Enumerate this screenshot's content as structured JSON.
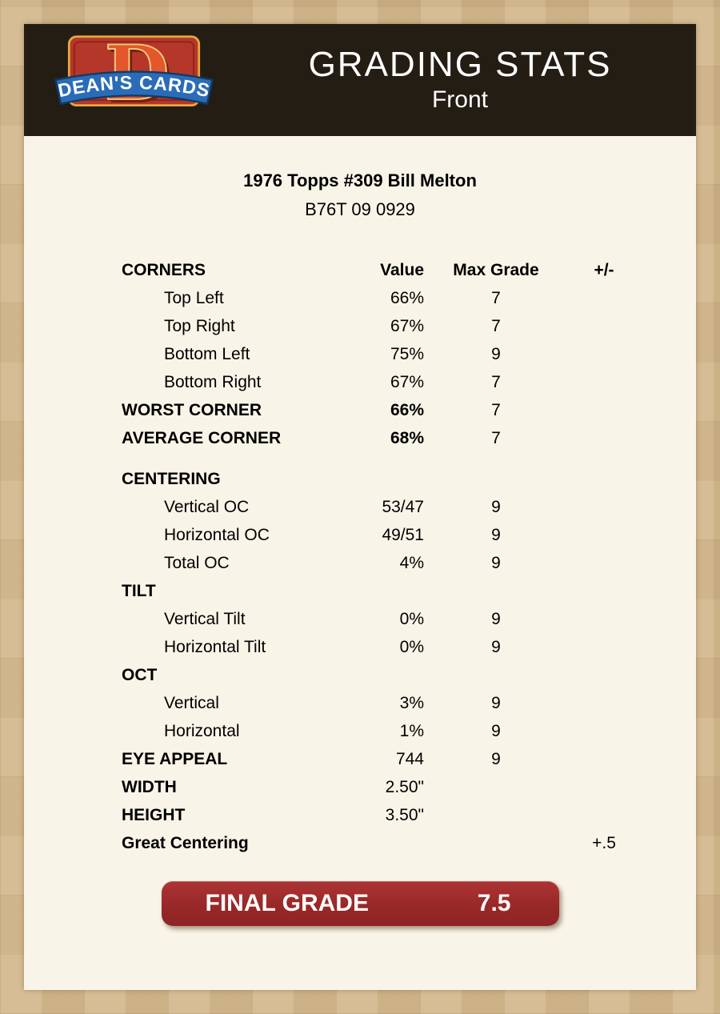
{
  "header": {
    "title": "GRADING STATS",
    "subtitle": "Front",
    "logo": {
      "letter": "D",
      "banner_text": "DEAN'S CARDS"
    }
  },
  "card_info": {
    "title": "1976 Topps #309 Bill Melton",
    "code": "B76T 09 0929"
  },
  "grading_table": {
    "rows": [
      {
        "style": "header",
        "label": "CORNERS",
        "value": "Value",
        "max": "Max Grade",
        "pm": "+/-"
      },
      {
        "style": "item",
        "label": "Top Left",
        "value": "66%",
        "max": "7"
      },
      {
        "style": "item",
        "label": "Top Right",
        "value": "67%",
        "max": "7"
      },
      {
        "style": "item",
        "label": "Bottom Left",
        "value": "75%",
        "max": "9"
      },
      {
        "style": "item",
        "label": "Bottom Right",
        "value": "67%",
        "max": "7"
      },
      {
        "style": "summary",
        "label": "WORST CORNER",
        "value": "66%",
        "max": "7"
      },
      {
        "style": "summary",
        "label": "AVERAGE CORNER",
        "value": "68%",
        "max": "7"
      },
      {
        "style": "section",
        "label": "CENTERING",
        "gap_before": true
      },
      {
        "style": "item",
        "label": "Vertical OC",
        "value": "53/47",
        "max": "9"
      },
      {
        "style": "item",
        "label": "Horizontal OC",
        "value": "49/51",
        "max": "9"
      },
      {
        "style": "item",
        "label": "Total OC",
        "value": "4%",
        "max": "9"
      },
      {
        "style": "section",
        "label": "TILT"
      },
      {
        "style": "item",
        "label": "Vertical Tilt",
        "value": "0%",
        "max": "9"
      },
      {
        "style": "item",
        "label": "Horizontal Tilt",
        "value": "0%",
        "max": "9"
      },
      {
        "style": "section",
        "label": "OCT"
      },
      {
        "style": "item",
        "label": "Vertical",
        "value": "3%",
        "max": "9"
      },
      {
        "style": "item",
        "label": "Horizontal",
        "value": "1%",
        "max": "9"
      },
      {
        "style": "metric",
        "label": "EYE APPEAL",
        "value": "744",
        "max": "9"
      },
      {
        "style": "metric",
        "label": "WIDTH",
        "value": "2.50\""
      },
      {
        "style": "metric",
        "label": "HEIGHT",
        "value": "3.50\""
      },
      {
        "style": "metric",
        "label": "Great Centering",
        "pm": "+.5"
      }
    ]
  },
  "final_grade": {
    "label": "FINAL GRADE",
    "value": "7.5"
  },
  "colors": {
    "page_background": "#c7a87a",
    "header_background": "#241d14",
    "panel_background": "#f8f4e7",
    "final_grade_red": "#992828",
    "logo_red": "#b5372a",
    "logo_gold": "#e3a83f",
    "logo_blue": "#2b6cb8"
  }
}
